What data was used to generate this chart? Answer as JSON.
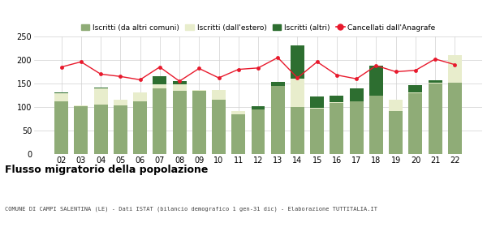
{
  "years": [
    "02",
    "03",
    "04",
    "05",
    "06",
    "07",
    "08",
    "09",
    "10",
    "11",
    "12",
    "13",
    "14",
    "15",
    "16",
    "17",
    "18",
    "19",
    "20",
    "21",
    "22"
  ],
  "iscritti_comuni": [
    113,
    102,
    105,
    104,
    113,
    140,
    135,
    135,
    116,
    85,
    95,
    145,
    100,
    97,
    109,
    112,
    125,
    91,
    130,
    150,
    151
  ],
  "iscritti_estero": [
    17,
    2,
    35,
    12,
    18,
    8,
    13,
    1,
    20,
    6,
    0,
    0,
    60,
    2,
    1,
    0,
    0,
    24,
    2,
    2,
    60
  ],
  "iscritti_altri": [
    2,
    0,
    2,
    0,
    1,
    18,
    8,
    0,
    0,
    0,
    7,
    8,
    70,
    24,
    15,
    28,
    62,
    1,
    15,
    5,
    0
  ],
  "cancellati": [
    185,
    196,
    170,
    165,
    158,
    185,
    155,
    182,
    162,
    180,
    183,
    205,
    162,
    196,
    168,
    160,
    188,
    175,
    178,
    202,
    190
  ],
  "color_comuni": "#8fac77",
  "color_estero": "#e8edcc",
  "color_altri": "#2d6e30",
  "color_cancellati": "#e8192c",
  "ylim_max": 250,
  "ylim_min": 0,
  "yticks": [
    0,
    50,
    100,
    150,
    200,
    250
  ],
  "legend_labels": [
    "Iscritti (da altri comuni)",
    "Iscritti (dall'estero)",
    "Iscritti (altri)",
    "Cancellati dall'Anagrafe"
  ],
  "title": "Flusso migratorio della popolazione",
  "subtitle": "COMUNE DI CAMPI SALENTINA (LE) - Dati ISTAT (bilancio demografico 1 gen-31 dic) - Elaborazione TUTTITALIA.IT",
  "bg_color": "#ffffff",
  "grid_color": "#d0d0d0"
}
